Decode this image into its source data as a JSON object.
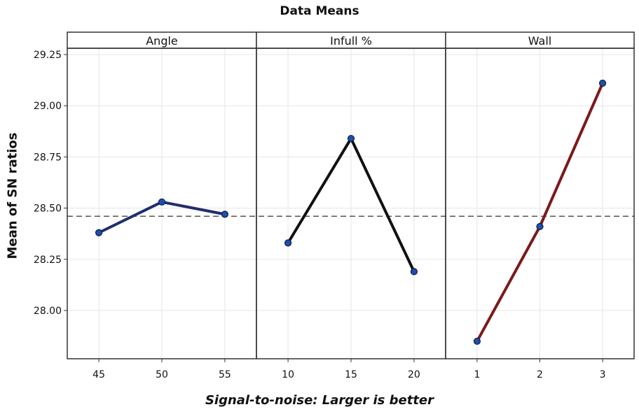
{
  "chart_data": {
    "type": "line",
    "title": "Data Means",
    "xlabel": "Signal-to-noise: Larger is better",
    "ylabel": "Mean of SN ratios",
    "ylim": [
      27.8,
      29.25
    ],
    "yticks": [
      "28.00",
      "28.25",
      "28.50",
      "28.75",
      "29.00",
      "29.25"
    ],
    "ytick_values": [
      28.0,
      28.25,
      28.5,
      28.75,
      29.0,
      29.25
    ],
    "reference_line": 28.46,
    "grid": true,
    "panels": [
      {
        "name": "Angle",
        "categories": [
          "45",
          "50",
          "55"
        ],
        "values": [
          28.38,
          28.53,
          28.47
        ],
        "color": "#1f2f6e"
      },
      {
        "name": "Infull %",
        "categories": [
          "10",
          "15",
          "20"
        ],
        "values": [
          28.33,
          28.84,
          28.19
        ],
        "color": "#111111"
      },
      {
        "name": "Wall",
        "categories": [
          "1",
          "2",
          "3"
        ],
        "values": [
          27.85,
          28.41,
          29.11
        ],
        "color": "#7a1a1a"
      }
    ],
    "marker_color": "#1f4fa8"
  }
}
